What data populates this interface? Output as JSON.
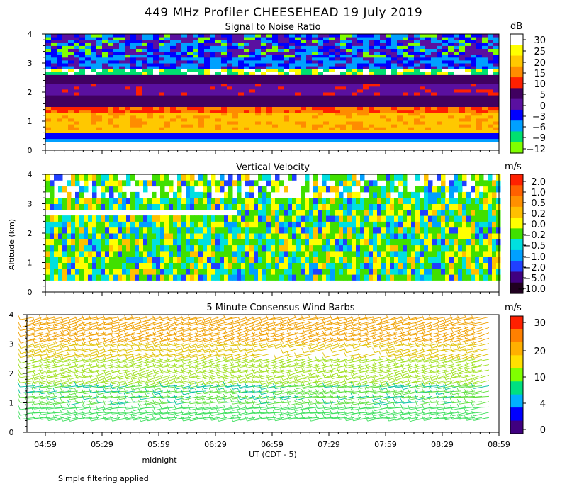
{
  "figure": {
    "title": "449 MHz Profiler CHEESEHEAD 19 July 2019",
    "y_axis_label": "Altitude (km)",
    "x_axis_label": "UT  (CDT - 5)",
    "x_annotation": "midnight",
    "footnote": "Simple filtering applied"
  },
  "chart_data": [
    {
      "type": "heatmap",
      "title": "Signal to Noise Ratio",
      "colorbar_unit": "dB",
      "x_ticks": [
        "04:59",
        "05:29",
        "05:59",
        "06:29",
        "06:59",
        "07:29",
        "07:59",
        "08:29",
        "08:59"
      ],
      "y_ticks": [
        "0",
        "1",
        "2",
        "3",
        "4"
      ],
      "ylim": [
        0,
        4
      ],
      "colorbar_labels": [
        "30",
        "25",
        "20",
        "15",
        "10",
        "5",
        "0",
        "−3",
        "−6",
        "−9",
        "−12"
      ],
      "colorbar_colors": [
        "#ffffff",
        "#ffff00",
        "#ffc800",
        "#ff8c00",
        "#ff2000",
        "#400060",
        "#5a10a0",
        "#0000ff",
        "#00a0ff",
        "#00e070",
        "#80ff00"
      ],
      "layers": [
        {
          "alt_from": 0.3,
          "alt_to": 0.45,
          "level": "−3 to 0"
        },
        {
          "alt_from": 0.45,
          "alt_to": 0.6,
          "level": "0 to 5"
        },
        {
          "alt_from": 0.6,
          "alt_to": 1.5,
          "level": "15 to 25"
        },
        {
          "alt_from": 1.5,
          "alt_to": 2.5,
          "level": "0 to 10"
        },
        {
          "alt_from": 2.5,
          "alt_to": 3.2,
          "level": "−9 to 30"
        },
        {
          "alt_from": 3.2,
          "alt_to": 4.0,
          "level": "−12 to 5"
        }
      ]
    },
    {
      "type": "heatmap",
      "title": "Vertical Velocity",
      "colorbar_unit": "m/s",
      "x_ticks": [
        "04:59",
        "05:29",
        "05:59",
        "06:29",
        "06:59",
        "07:29",
        "07:59",
        "08:29",
        "08:59"
      ],
      "y_ticks": [
        "0",
        "1",
        "2",
        "3",
        "4"
      ],
      "ylim": [
        0,
        4
      ],
      "colorbar_labels": [
        "2.0",
        "1.0",
        "0.5",
        "0.2",
        "0.0",
        "−0.2",
        "−0.5",
        "−1.0",
        "−2.0",
        "−5.0",
        "−10.0"
      ],
      "colorbar_colors": [
        "#ff2000",
        "#ff6000",
        "#ff9000",
        "#ffc000",
        "#ffff00",
        "#40e000",
        "#00e0e0",
        "#00a0ff",
        "#2040ff",
        "#400080",
        "#200020"
      ],
      "typical_range": [
        -1.0,
        0.5
      ]
    },
    {
      "type": "wind_barbs",
      "title": "5 Minute Consensus Wind Barbs",
      "colorbar_unit": "m/s",
      "x_ticks": [
        "04:59",
        "05:29",
        "05:59",
        "06:29",
        "06:59",
        "07:29",
        "07:59",
        "08:29",
        "08:59"
      ],
      "y_ticks": [
        "0",
        "1",
        "2",
        "3",
        "4"
      ],
      "ylim": [
        0,
        4
      ],
      "colorbar_labels": [
        "30",
        "20",
        "10",
        "4",
        "0"
      ],
      "colorbar_colors": [
        "#ff2000",
        "#ff8000",
        "#ffb000",
        "#ffe000",
        "#80ff00",
        "#00e080",
        "#00b0ff",
        "#0000ff",
        "#400080"
      ],
      "speed_by_altitude": [
        {
          "alt_from": 0.5,
          "alt_to": 1.7,
          "speed_ms": "8 to 12"
        },
        {
          "alt_from": 1.7,
          "alt_to": 2.6,
          "speed_ms": "12 to 16"
        },
        {
          "alt_from": 2.6,
          "alt_to": 4.0,
          "speed_ms": "16 to 22"
        }
      ]
    }
  ]
}
